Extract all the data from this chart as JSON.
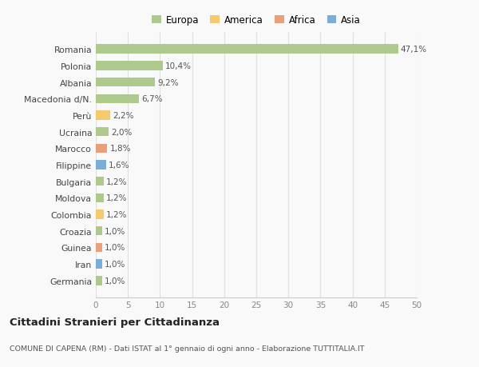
{
  "countries": [
    "Germania",
    "Iran",
    "Guinea",
    "Croazia",
    "Colombia",
    "Moldova",
    "Bulgaria",
    "Filippine",
    "Marocco",
    "Ucraina",
    "Perù",
    "Macedonia d/N.",
    "Albania",
    "Polonia",
    "Romania"
  ],
  "values": [
    1.0,
    1.0,
    1.0,
    1.0,
    1.2,
    1.2,
    1.2,
    1.6,
    1.8,
    2.0,
    2.2,
    6.7,
    9.2,
    10.4,
    47.1
  ],
  "labels": [
    "1,0%",
    "1,0%",
    "1,0%",
    "1,0%",
    "1,2%",
    "1,2%",
    "1,2%",
    "1,6%",
    "1,8%",
    "2,0%",
    "2,2%",
    "6,7%",
    "9,2%",
    "10,4%",
    "47,1%"
  ],
  "continents": [
    "Europa",
    "Asia",
    "Africa",
    "Europa",
    "America",
    "Europa",
    "Europa",
    "Asia",
    "Africa",
    "Europa",
    "America",
    "Europa",
    "Europa",
    "Europa",
    "Europa"
  ],
  "colors": {
    "Europa": "#aec98c",
    "America": "#f5ca6e",
    "Africa": "#e8a07a",
    "Asia": "#7aaed6"
  },
  "legend_order": [
    "Europa",
    "America",
    "Africa",
    "Asia"
  ],
  "xlim": [
    0,
    50
  ],
  "xticks": [
    0,
    5,
    10,
    15,
    20,
    25,
    30,
    35,
    40,
    45,
    50
  ],
  "title": "Cittadini Stranieri per Cittadinanza",
  "subtitle": "COMUNE DI CAPENA (RM) - Dati ISTAT al 1° gennaio di ogni anno - Elaborazione TUTTITALIA.IT",
  "background_color": "#f9f9f9",
  "bar_height": 0.55,
  "grid_color": "#e0e0e0"
}
